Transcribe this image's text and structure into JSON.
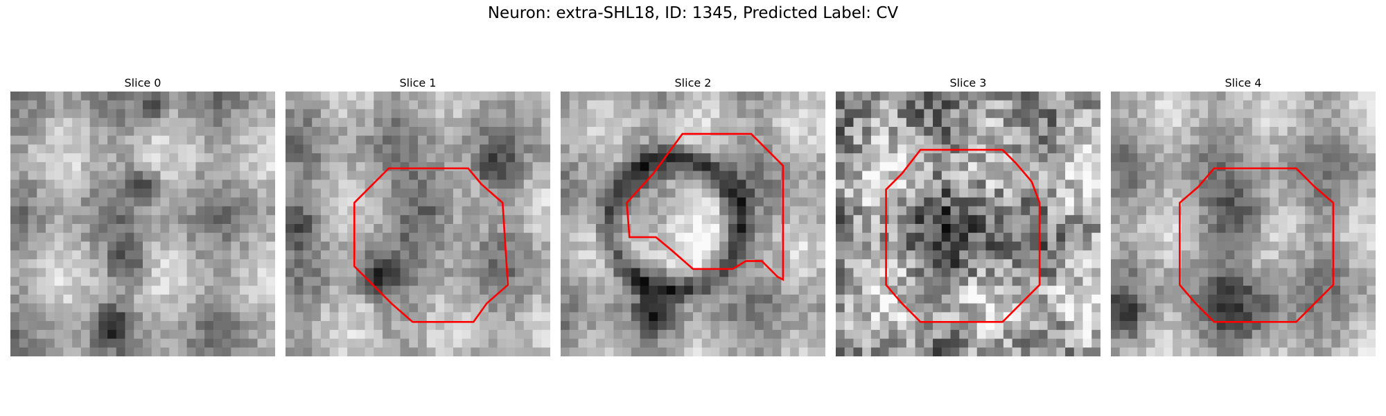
{
  "figure": {
    "title": "Neuron: extra-SHL18, ID: 1345, Predicted Label: CV",
    "outline_color": "#ff0000"
  },
  "slices": [
    {
      "label": "Slice 0",
      "seed": 11,
      "dark": [
        [
          0.5,
          0.35,
          0.1
        ],
        [
          0.45,
          0.65,
          0.12
        ],
        [
          0.38,
          0.88,
          0.1
        ],
        [
          0.55,
          0.05,
          0.08
        ]
      ],
      "outline": []
    },
    {
      "label": "Slice 1",
      "seed": 23,
      "dark": [
        [
          0.55,
          0.45,
          0.2
        ],
        [
          0.05,
          0.5,
          0.12
        ],
        [
          0.35,
          0.7,
          0.12
        ],
        [
          0.8,
          0.3,
          0.1
        ]
      ],
      "outline": [
        [
          0.39,
          0.29
        ],
        [
          0.69,
          0.29
        ],
        [
          0.74,
          0.35
        ],
        [
          0.82,
          0.42
        ],
        [
          0.84,
          0.73
        ],
        [
          0.76,
          0.8
        ],
        [
          0.71,
          0.87
        ],
        [
          0.48,
          0.87
        ],
        [
          0.4,
          0.8
        ],
        [
          0.33,
          0.73
        ],
        [
          0.26,
          0.66
        ],
        [
          0.26,
          0.42
        ],
        [
          0.33,
          0.35
        ]
      ]
    },
    {
      "label": "Slice 2",
      "seed": 37,
      "ring": [
        0.43,
        0.5,
        0.25,
        0.07
      ],
      "dark": [
        [
          0.35,
          0.85,
          0.1
        ]
      ],
      "outline": [
        [
          0.46,
          0.16
        ],
        [
          0.72,
          0.16
        ],
        [
          0.84,
          0.28
        ],
        [
          0.84,
          0.71
        ],
        [
          0.82,
          0.7
        ],
        [
          0.76,
          0.64
        ],
        [
          0.7,
          0.64
        ],
        [
          0.65,
          0.67
        ],
        [
          0.5,
          0.67
        ],
        [
          0.42,
          0.6
        ],
        [
          0.36,
          0.55
        ],
        [
          0.26,
          0.55
        ],
        [
          0.25,
          0.42
        ],
        [
          0.35,
          0.31
        ]
      ]
    },
    {
      "label": "Slice 3",
      "seed": 49,
      "noisy": true,
      "dark": [
        [
          0.5,
          0.5,
          0.3
        ]
      ],
      "outline": [
        [
          0.32,
          0.22
        ],
        [
          0.63,
          0.22
        ],
        [
          0.68,
          0.27
        ],
        [
          0.74,
          0.34
        ],
        [
          0.77,
          0.42
        ],
        [
          0.77,
          0.73
        ],
        [
          0.7,
          0.8
        ],
        [
          0.63,
          0.87
        ],
        [
          0.32,
          0.87
        ],
        [
          0.25,
          0.8
        ],
        [
          0.19,
          0.73
        ],
        [
          0.19,
          0.37
        ],
        [
          0.25,
          0.31
        ]
      ]
    },
    {
      "label": "Slice 4",
      "seed": 61,
      "dark": [
        [
          0.48,
          0.48,
          0.18
        ],
        [
          0.5,
          0.85,
          0.22
        ],
        [
          0.05,
          0.85,
          0.12
        ]
      ],
      "outline": [
        [
          0.39,
          0.29
        ],
        [
          0.7,
          0.29
        ],
        [
          0.77,
          0.36
        ],
        [
          0.84,
          0.42
        ],
        [
          0.84,
          0.73
        ],
        [
          0.77,
          0.8
        ],
        [
          0.7,
          0.87
        ],
        [
          0.39,
          0.87
        ],
        [
          0.32,
          0.8
        ],
        [
          0.26,
          0.73
        ],
        [
          0.26,
          0.42
        ],
        [
          0.33,
          0.36
        ]
      ]
    }
  ]
}
